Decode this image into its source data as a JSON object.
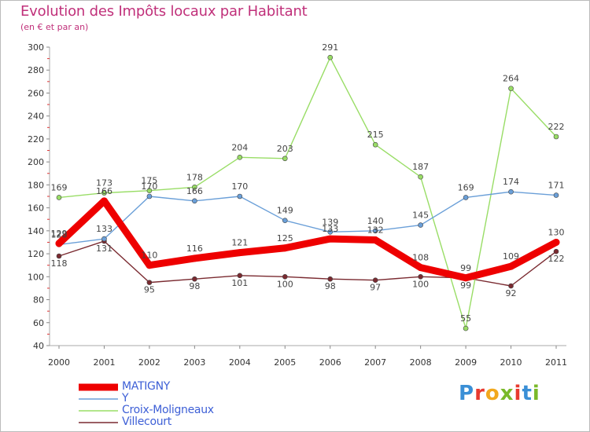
{
  "header": {
    "title": "Evolution des Impôts locaux par Habitant",
    "subtitle": "(en € et par an)"
  },
  "logo": {
    "text": "Proxiti",
    "letters": [
      "P",
      "r",
      "o",
      "x",
      "i",
      "t",
      "i"
    ],
    "colors": [
      "#3a8fd6",
      "#e8392e",
      "#f2a81d",
      "#7ab929",
      "#e8392e",
      "#3a8fd6",
      "#7ab929"
    ]
  },
  "chart_data": {
    "type": "line",
    "title": "Evolution des Impôts locaux par Habitant",
    "subtitle": "(en € et par an)",
    "xlabel": "",
    "ylabel": "",
    "x": [
      "2000",
      "2001",
      "2002",
      "2003",
      "2004",
      "2005",
      "2006",
      "2007",
      "2008",
      "2009",
      "2010",
      "2011"
    ],
    "ylim": [
      40,
      300
    ],
    "yticks": [
      40,
      60,
      80,
      100,
      120,
      140,
      160,
      180,
      200,
      220,
      240,
      260,
      280,
      300
    ],
    "grid": false,
    "legend_position": "bottom-left",
    "series": [
      {
        "name": "Villecourt",
        "color": "#7a2a30",
        "values": [
          118,
          131,
          95,
          98,
          101,
          100,
          98,
          97,
          100,
          99,
          92,
          122
        ]
      },
      {
        "name": "Croix-Moligneaux",
        "color": "#99dd66",
        "values": [
          169,
          173,
          175,
          178,
          204,
          203,
          291,
          215,
          187,
          55,
          264,
          222
        ]
      },
      {
        "name": "Y",
        "color": "#6a9fd8",
        "values": [
          128,
          133,
          170,
          166,
          170,
          149,
          139,
          140,
          145,
          169,
          174,
          171
        ]
      },
      {
        "name": "MATIGNY",
        "color": "#ee0000",
        "values": [
          129,
          166,
          110,
          116,
          121,
          125,
          133,
          132,
          108,
          99,
          109,
          130
        ]
      }
    ],
    "legend_order": [
      "MATIGNY",
      "Y",
      "Croix-Moligneaux",
      "Villecourt"
    ]
  }
}
